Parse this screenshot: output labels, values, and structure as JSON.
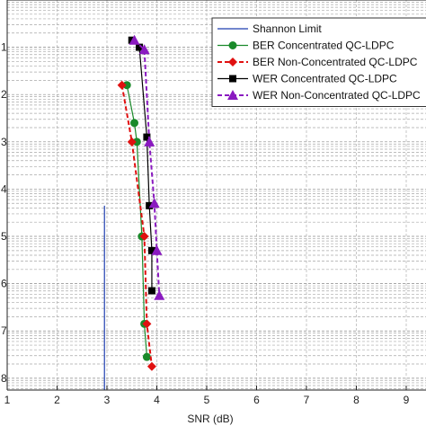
{
  "chart_data": {
    "type": "line",
    "xlabel": "SNR (dB)",
    "ylabel": "",
    "x_ticks": [
      "1",
      "2",
      "3",
      "4",
      "5",
      "6",
      "7",
      "8",
      "9"
    ],
    "y_ticks_visible": [
      "1",
      "2",
      "3",
      "4",
      "5",
      "6",
      "7",
      "8"
    ],
    "xlim": [
      1,
      9.5
    ],
    "ylim": [
      0,
      8.25
    ],
    "grid": true,
    "legend_position": "top-right",
    "shannon_limit_x": 2.95,
    "series": [
      {
        "name": "Shannon Limit",
        "style": "solid",
        "color": "#1f3fb0",
        "marker": "none",
        "points": [
          [
            2.95,
            4.35
          ],
          [
            2.95,
            8.25
          ]
        ]
      },
      {
        "name": "BER Concentrated QC-LDPC",
        "style": "solid",
        "color": "#1a8a2a",
        "marker": "circle",
        "points": [
          [
            3.4,
            1.8
          ],
          [
            3.55,
            2.6
          ],
          [
            3.6,
            3.0
          ],
          [
            3.7,
            5.0
          ],
          [
            3.75,
            6.85
          ],
          [
            3.8,
            7.55
          ]
        ]
      },
      {
        "name": "BER Non-Concentrated QC-LDPC",
        "style": "dashed",
        "color": "#e01010",
        "marker": "diamond",
        "points": [
          [
            3.3,
            1.8
          ],
          [
            3.5,
            3.0
          ],
          [
            3.75,
            5.0
          ],
          [
            3.8,
            6.85
          ],
          [
            3.9,
            7.75
          ]
        ]
      },
      {
        "name": "WER Concentrated QC-LDPC",
        "style": "solid",
        "color": "#000000",
        "marker": "square",
        "points": [
          [
            3.5,
            0.85
          ],
          [
            3.65,
            1.0
          ],
          [
            3.8,
            2.9
          ],
          [
            3.85,
            4.35
          ],
          [
            3.9,
            5.3
          ],
          [
            3.9,
            6.15
          ]
        ]
      },
      {
        "name": "WER Non-Concentrated QC-LDPC",
        "style": "dashed",
        "color": "#8a1ac0",
        "marker": "triangle",
        "points": [
          [
            3.55,
            0.85
          ],
          [
            3.75,
            1.05
          ],
          [
            3.85,
            3.0
          ],
          [
            3.95,
            4.3
          ],
          [
            4.0,
            5.3
          ],
          [
            4.05,
            6.25
          ]
        ]
      }
    ],
    "legend_entries": [
      "Shannon Limit",
      "BER Concentrated QC-LDPC",
      "BER Non-Concentrated QC-LDPC",
      "WER Concentrated QC-LDPC",
      "WER Non-Concentrated QC-LDPC"
    ]
  }
}
